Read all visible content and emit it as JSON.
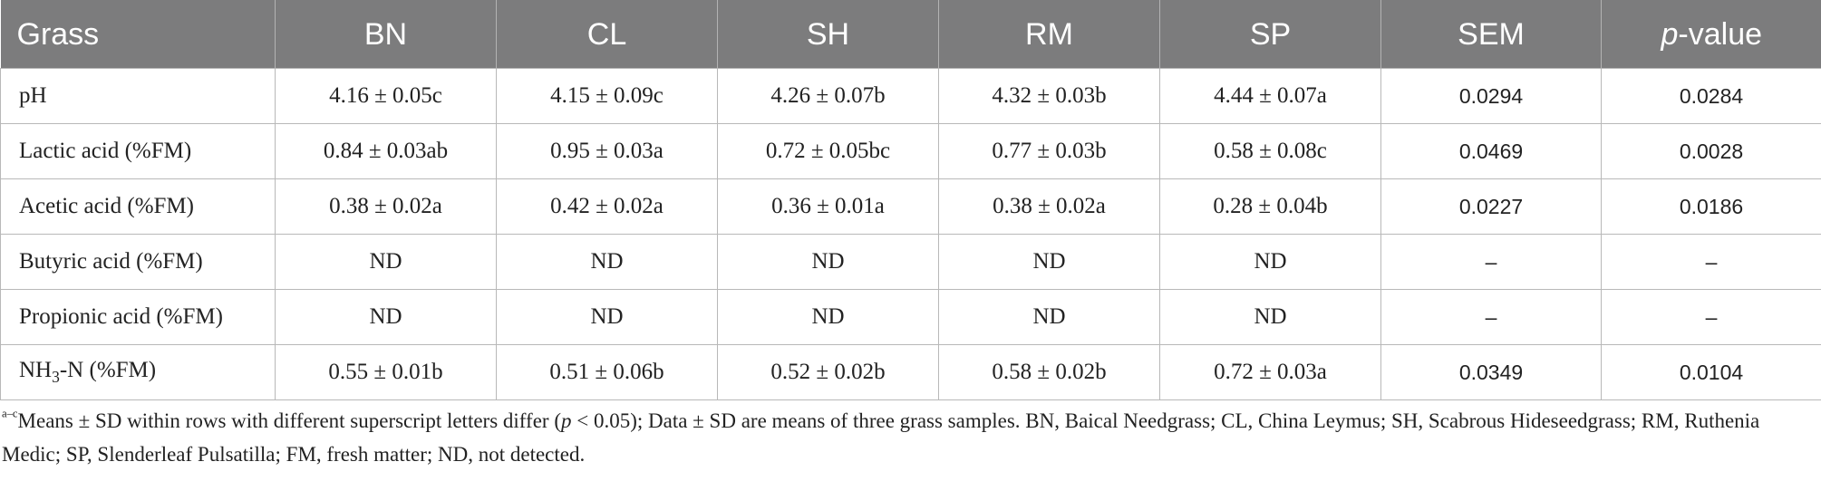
{
  "table": {
    "headers": [
      "Grass",
      "BN",
      "CL",
      "SH",
      "RM",
      "SP",
      "SEM"
    ],
    "p_header_italic": "p",
    "p_header_rest": "-value",
    "rows": [
      {
        "label_main": "pH",
        "label_sub": "",
        "label_after": "",
        "cells": [
          "4.16 ± 0.05c",
          "4.15 ± 0.09c",
          "4.26 ± 0.07b",
          "4.32 ± 0.03b",
          "4.44 ± 0.07a"
        ],
        "sem": "0.0294",
        "p": "0.0284"
      },
      {
        "label_main": "Lactic acid (%FM)",
        "label_sub": "",
        "label_after": "",
        "cells": [
          "0.84 ± 0.03ab",
          "0.95 ± 0.03a",
          "0.72 ± 0.05bc",
          "0.77 ± 0.03b",
          "0.58 ± 0.08c"
        ],
        "sem": "0.0469",
        "p": "0.0028"
      },
      {
        "label_main": "Acetic acid (%FM)",
        "label_sub": "",
        "label_after": "",
        "cells": [
          "0.38 ± 0.02a",
          "0.42 ± 0.02a",
          "0.36 ± 0.01a",
          "0.38 ± 0.02a",
          "0.28 ± 0.04b"
        ],
        "sem": "0.0227",
        "p": "0.0186"
      },
      {
        "label_main": "Butyric acid (%FM)",
        "label_sub": "",
        "label_after": "",
        "cells": [
          "ND",
          "ND",
          "ND",
          "ND",
          "ND"
        ],
        "sem": "–",
        "p": "–"
      },
      {
        "label_main": "Propionic acid (%FM)",
        "label_sub": "",
        "label_after": "",
        "cells": [
          "ND",
          "ND",
          "ND",
          "ND",
          "ND"
        ],
        "sem": "–",
        "p": "–"
      },
      {
        "label_main": "NH",
        "label_sub": "3",
        "label_after": "-N (%FM)",
        "cells": [
          "0.55 ± 0.01b",
          "0.51 ± 0.06b",
          "0.52 ± 0.02b",
          "0.58 ± 0.02b",
          "0.72 ± 0.03a"
        ],
        "sem": "0.0349",
        "p": "0.0104"
      }
    ]
  },
  "footnote": {
    "superscript": "a–c",
    "text_before_p": "Means ± SD within rows with different superscript letters differ (",
    "p_italic": "p",
    "text_after_p": " < 0.05); Data ± SD are means of three grass samples. BN, Baical Needgrass; CL, China Leymus; SH, Scabrous Hideseedgrass; RM, Ruthenia Medic; SP, Slenderleaf Pulsatilla; FM, fresh matter; ND, not detected."
  }
}
